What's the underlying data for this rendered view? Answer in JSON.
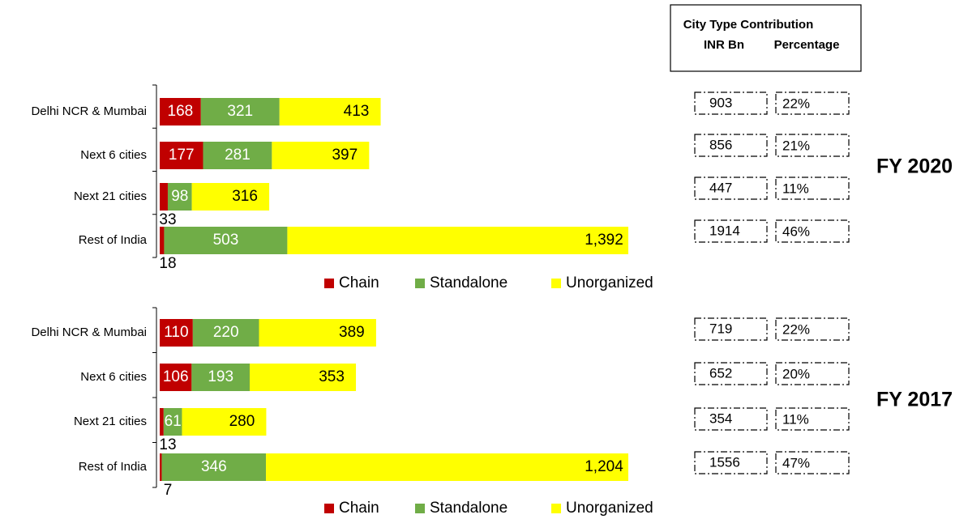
{
  "table_header": {
    "title": "City Type Contribution",
    "columns": [
      "INR Bn",
      "Percentage"
    ]
  },
  "chart_data": [
    {
      "type": "stacked_barh",
      "subtitle": "FY 2020",
      "categories": [
        "Delhi NCR & Mumbai",
        "Next 6 cities",
        "Next 21 cities",
        "Rest of India"
      ],
      "series": [
        {
          "name": "Chain",
          "color": "#c00000",
          "values": [
            168,
            177,
            33,
            18
          ]
        },
        {
          "name": "Standalone",
          "color": "#70ad47",
          "values": [
            321,
            281,
            98,
            503
          ]
        },
        {
          "name": "Unorganized",
          "color": "#ffff00",
          "values": [
            413,
            397,
            316,
            1392
          ],
          "value_labels": [
            "413",
            "397",
            "316",
            "1,392"
          ]
        }
      ],
      "xlim": [
        0,
        1913
      ],
      "legend": "bottom",
      "inr_bn": [
        903,
        856,
        447,
        1914
      ],
      "percentage": [
        "22%",
        "21%",
        "11%",
        "46%"
      ]
    },
    {
      "type": "stacked_barh",
      "subtitle": "FY 2017",
      "categories": [
        "Delhi NCR & Mumbai",
        "Next 6 cities",
        "Next 21 cities",
        "Rest of India"
      ],
      "series": [
        {
          "name": "Chain",
          "color": "#c00000",
          "values": [
            110,
            106,
            13,
            7
          ]
        },
        {
          "name": "Standalone",
          "color": "#70ad47",
          "values": [
            220,
            193,
            61,
            346
          ]
        },
        {
          "name": "Unorganized",
          "color": "#ffff00",
          "values": [
            389,
            353,
            280,
            1204
          ],
          "value_labels": [
            "389",
            "353",
            "280",
            "1,204"
          ]
        }
      ],
      "xlim": [
        0,
        1557
      ],
      "legend": "bottom",
      "inr_bn": [
        719,
        652,
        354,
        1556
      ],
      "percentage": [
        "22%",
        "20%",
        "11%",
        "47%"
      ]
    }
  ]
}
